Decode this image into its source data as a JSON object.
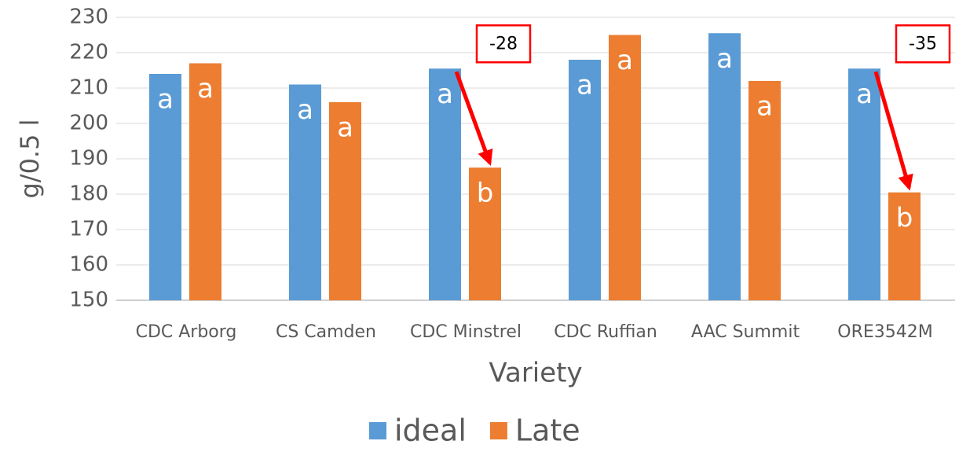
{
  "chart_data": {
    "type": "bar",
    "y_label": "g/0.5 l",
    "x_label": "Variety",
    "categories": [
      "CDC Arborg",
      "CS Camden",
      "CDC Minstrel",
      "CDC Ruffian",
      "AAC Summit",
      "ORE3542M"
    ],
    "series": [
      {
        "name": "ideal",
        "color": "#5b9bd5",
        "values": [
          214,
          211,
          215.5,
          218,
          225.5,
          215.5
        ],
        "letters": [
          "a",
          "a",
          "a",
          "a",
          "a",
          "a"
        ]
      },
      {
        "name": "Late",
        "color": "#ed7d31",
        "values": [
          217,
          206,
          187.5,
          225,
          212,
          180.5
        ],
        "letters": [
          "a",
          "a",
          "b",
          "a",
          "a",
          "b"
        ]
      }
    ],
    "annotations": [
      "-28",
      "-35"
    ],
    "ylim": [
      150,
      230
    ],
    "yticks": [
      150,
      160,
      170,
      180,
      190,
      200,
      210,
      220,
      230
    ],
    "grid": true,
    "legend": "bottom"
  }
}
